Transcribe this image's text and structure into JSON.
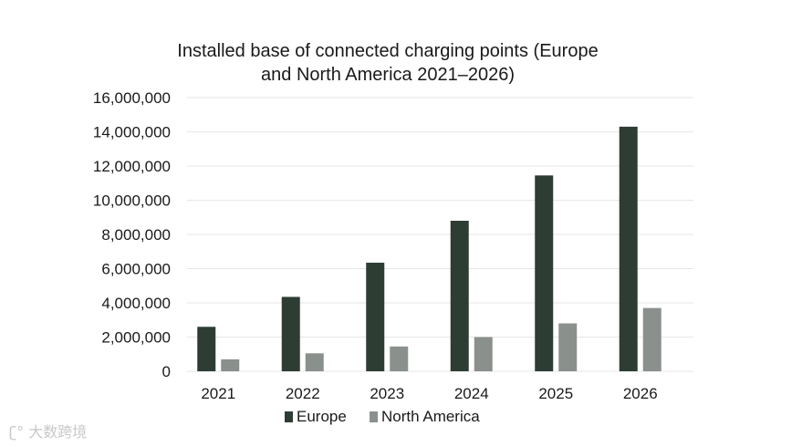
{
  "chart_data": {
    "type": "bar",
    "title_lines": [
      "Installed base of connected charging points (Europe",
      "and North America 2021–2026)"
    ],
    "categories": [
      "2021",
      "2022",
      "2023",
      "2024",
      "2025",
      "2026"
    ],
    "series": [
      {
        "name": "Europe",
        "color": "#2d3d34",
        "values": [
          2600000,
          4350000,
          6350000,
          8800000,
          11450000,
          14300000
        ]
      },
      {
        "name": "North America",
        "color": "#8a908c",
        "values": [
          700000,
          1050000,
          1450000,
          2000000,
          2800000,
          3700000
        ]
      }
    ],
    "ylim": [
      0,
      16000000
    ],
    "yticks": [
      0,
      2000000,
      4000000,
      6000000,
      8000000,
      10000000,
      12000000,
      14000000,
      16000000
    ],
    "ytick_labels": [
      "0",
      "2,000,000",
      "4,000,000",
      "6,000,000",
      "8,000,000",
      "10,000,000",
      "12,000,000",
      "14,000,000",
      "16,000,000"
    ],
    "grid": true,
    "legend": "bottom-center"
  },
  "watermark": {
    "icon": "brand-logo-icon",
    "text": "大数跨境"
  }
}
